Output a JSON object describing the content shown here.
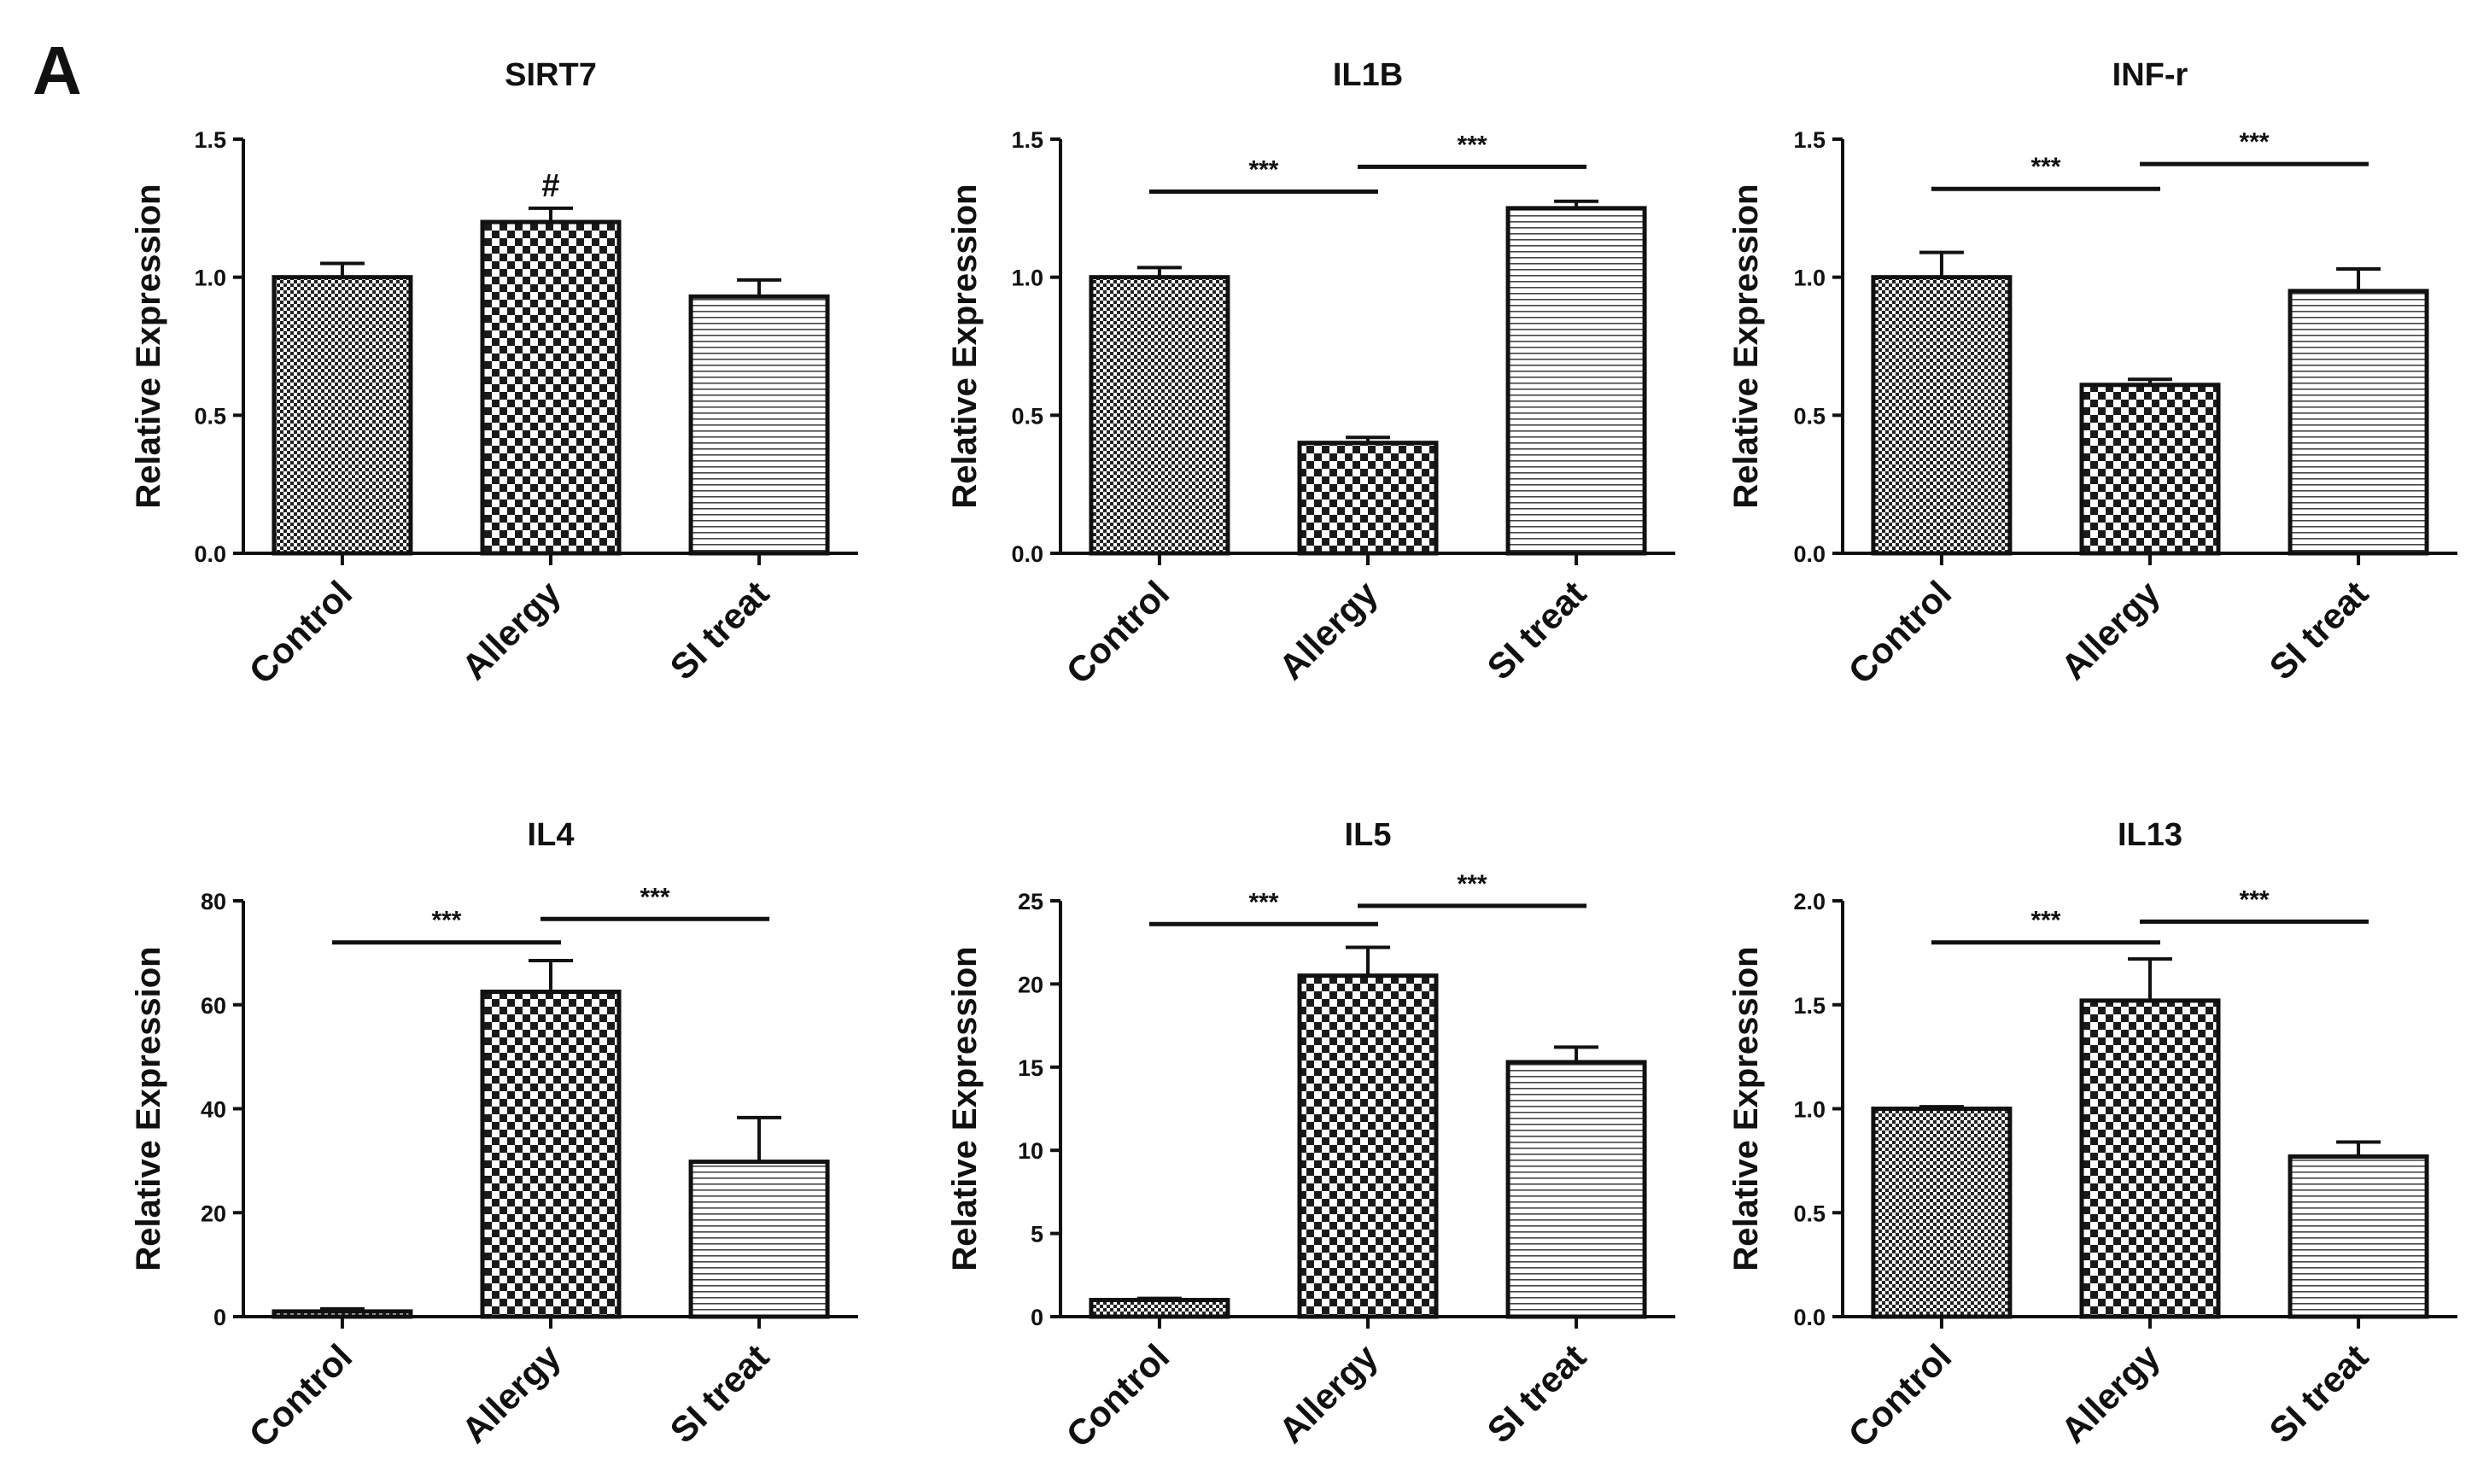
{
  "figure": {
    "panel_label": "A",
    "colors": {
      "ink": "#111111",
      "bar_fill": "#ffffff"
    }
  },
  "chart_data": [
    {
      "type": "bar",
      "title": "SIRT7",
      "ylabel": "Relative Expression",
      "xlabel": "",
      "categories": [
        "Control",
        "Allergy",
        "SI treat"
      ],
      "values": [
        1.0,
        1.2,
        0.93
      ],
      "errors": [
        0.05,
        0.05,
        0.06
      ],
      "patterns": [
        "fine-check",
        "coarse-check",
        "h-lines"
      ],
      "ylim": [
        0,
        1.5
      ],
      "yticks": [
        0.0,
        0.5,
        1.0,
        1.5
      ],
      "ytick_labels": [
        "0.0",
        "0.5",
        "1.0",
        "1.5"
      ],
      "annotations": [
        {
          "text": "#",
          "bar": 1
        }
      ],
      "significance": []
    },
    {
      "type": "bar",
      "title": "IL1B",
      "ylabel": "Relative Expression",
      "xlabel": "",
      "categories": [
        "Control",
        "Allergy",
        "SI treat"
      ],
      "values": [
        1.0,
        0.4,
        1.25
      ],
      "errors": [
        0.035,
        0.02,
        0.025
      ],
      "patterns": [
        "fine-check",
        "coarse-check",
        "h-lines"
      ],
      "ylim": [
        0,
        1.5
      ],
      "yticks": [
        0.0,
        0.5,
        1.0,
        1.5
      ],
      "ytick_labels": [
        "0.0",
        "0.5",
        "1.0",
        "1.5"
      ],
      "annotations": [],
      "significance": [
        {
          "from": 0,
          "to": 1,
          "y": 1.31,
          "label": "***"
        },
        {
          "from": 1,
          "to": 2,
          "y": 1.4,
          "label": "***"
        }
      ]
    },
    {
      "type": "bar",
      "title": "INF-r",
      "ylabel": "Relative Expression",
      "xlabel": "",
      "categories": [
        "Control",
        "Allergy",
        "SI treat"
      ],
      "values": [
        1.0,
        0.61,
        0.95
      ],
      "errors": [
        0.09,
        0.02,
        0.08
      ],
      "patterns": [
        "fine-check",
        "coarse-check",
        "h-lines"
      ],
      "ylim": [
        0,
        1.5
      ],
      "yticks": [
        0.0,
        0.5,
        1.0,
        1.5
      ],
      "ytick_labels": [
        "0.0",
        "0.5",
        "1.0",
        "1.5"
      ],
      "annotations": [],
      "significance": [
        {
          "from": 0,
          "to": 1,
          "y": 1.32,
          "label": "***"
        },
        {
          "from": 1,
          "to": 2,
          "y": 1.41,
          "label": "***"
        }
      ]
    },
    {
      "type": "bar",
      "title": "IL4",
      "ylabel": "Relative Expression",
      "xlabel": "",
      "categories": [
        "Control",
        "Allergy",
        "SI treat"
      ],
      "values": [
        1.0,
        62.5,
        29.8
      ],
      "errors": [
        0.5,
        6.0,
        8.5
      ],
      "patterns": [
        "fine-check",
        "coarse-check",
        "h-lines"
      ],
      "ylim": [
        0,
        80
      ],
      "yticks": [
        0,
        20,
        40,
        60,
        80
      ],
      "ytick_labels": [
        "0",
        "20",
        "40",
        "60",
        "80"
      ],
      "annotations": [],
      "significance": [
        {
          "from": 0,
          "to": 1,
          "y": 72,
          "label": "***"
        },
        {
          "from": 1,
          "to": 2,
          "y": 76.5,
          "label": "***"
        }
      ]
    },
    {
      "type": "bar",
      "title": "IL5",
      "ylabel": "Relative Expression",
      "xlabel": "",
      "categories": [
        "Control",
        "Allergy",
        "SI treat"
      ],
      "values": [
        1.0,
        20.5,
        15.3
      ],
      "errors": [
        0.1,
        1.7,
        0.9
      ],
      "patterns": [
        "fine-check",
        "coarse-check",
        "h-lines"
      ],
      "ylim": [
        0,
        25
      ],
      "yticks": [
        0,
        5,
        10,
        15,
        20,
        25
      ],
      "ytick_labels": [
        "0",
        "5",
        "10",
        "15",
        "20",
        "25"
      ],
      "annotations": [],
      "significance": [
        {
          "from": 0,
          "to": 1,
          "y": 23.6,
          "label": "***"
        },
        {
          "from": 1,
          "to": 2,
          "y": 24.7,
          "label": "***"
        }
      ]
    },
    {
      "type": "bar",
      "title": "IL13",
      "ylabel": "Relative Expression",
      "xlabel": "",
      "categories": [
        "Control",
        "Allergy",
        "SI treat"
      ],
      "values": [
        1.0,
        1.52,
        0.77
      ],
      "errors": [
        0.01,
        0.2,
        0.07
      ],
      "patterns": [
        "fine-check",
        "coarse-check",
        "h-lines"
      ],
      "ylim": [
        0,
        2.0
      ],
      "yticks": [
        0.0,
        0.5,
        1.0,
        1.5,
        2.0
      ],
      "ytick_labels": [
        "0.0",
        "0.5",
        "1.0",
        "1.5",
        "2.0"
      ],
      "annotations": [],
      "significance": [
        {
          "from": 0,
          "to": 1,
          "y": 1.8,
          "label": "***"
        },
        {
          "from": 1,
          "to": 2,
          "y": 1.9,
          "label": "***"
        }
      ]
    }
  ]
}
